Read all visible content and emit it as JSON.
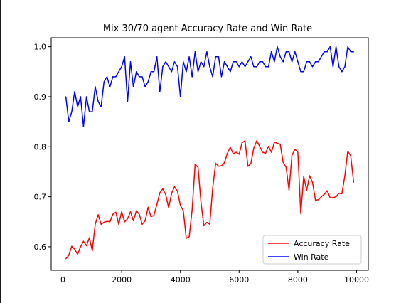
{
  "chart_data": {
    "type": "line",
    "title": "Mix 30/70 agent Accuracy Rate and Win Rate",
    "xlabel": "",
    "ylabel": "",
    "xlim": [
      -400,
      10400
    ],
    "ylim": [
      0.553,
      1.018
    ],
    "x_ticks": [
      0,
      2000,
      4000,
      6000,
      8000,
      10000
    ],
    "y_ticks": [
      0.6,
      0.7,
      0.8,
      0.9,
      1.0
    ],
    "x_tick_labels": [
      "0",
      "2000",
      "4000",
      "6000",
      "8000",
      "10000"
    ],
    "y_tick_labels": [
      "0.6",
      "0.7",
      "0.8",
      "0.9",
      "1.0"
    ],
    "grid": false,
    "legend_position": "lower-right",
    "x": [
      100,
      200,
      300,
      400,
      500,
      600,
      700,
      800,
      900,
      1000,
      1100,
      1200,
      1300,
      1400,
      1500,
      1600,
      1700,
      1800,
      1900,
      2000,
      2100,
      2200,
      2300,
      2400,
      2500,
      2600,
      2700,
      2800,
      2900,
      3000,
      3100,
      3200,
      3300,
      3400,
      3500,
      3600,
      3700,
      3800,
      3900,
      4000,
      4100,
      4200,
      4300,
      4400,
      4500,
      4600,
      4700,
      4800,
      4900,
      5000,
      5100,
      5200,
      5300,
      5400,
      5500,
      5600,
      5700,
      5800,
      5900,
      6000,
      6100,
      6200,
      6300,
      6400,
      6500,
      6600,
      6700,
      6800,
      6900,
      7000,
      7100,
      7200,
      7300,
      7400,
      7500,
      7600,
      7700,
      7800,
      7900,
      8000,
      8100,
      8200,
      8300,
      8400,
      8500,
      8600,
      8700,
      8800,
      8900,
      9000,
      9100,
      9200,
      9300,
      9400,
      9500,
      9600,
      9700,
      9800,
      9900
    ],
    "series": [
      {
        "name": "Accuracy Rate",
        "color": "#ff0000",
        "values": [
          0.576,
          0.583,
          0.601,
          0.595,
          0.585,
          0.6,
          0.611,
          0.602,
          0.618,
          0.592,
          0.645,
          0.664,
          0.645,
          0.649,
          0.651,
          0.65,
          0.665,
          0.669,
          0.645,
          0.67,
          0.65,
          0.656,
          0.67,
          0.652,
          0.672,
          0.665,
          0.645,
          0.652,
          0.679,
          0.66,
          0.663,
          0.685,
          0.708,
          0.716,
          0.704,
          0.678,
          0.707,
          0.72,
          0.711,
          0.683,
          0.672,
          0.617,
          0.62,
          0.674,
          0.765,
          0.759,
          0.69,
          0.642,
          0.649,
          0.645,
          0.717,
          0.767,
          0.761,
          0.762,
          0.768,
          0.787,
          0.799,
          0.786,
          0.789,
          0.785,
          0.808,
          0.812,
          0.761,
          0.766,
          0.797,
          0.812,
          0.801,
          0.789,
          0.787,
          0.801,
          0.789,
          0.809,
          0.807,
          0.805,
          0.769,
          0.759,
          0.713,
          0.783,
          0.795,
          0.789,
          0.666,
          0.741,
          0.713,
          0.742,
          0.729,
          0.693,
          0.694,
          0.7,
          0.705,
          0.712,
          0.698,
          0.698,
          0.7,
          0.707,
          0.706,
          0.742,
          0.791,
          0.782,
          0.729
        ]
      },
      {
        "name": "Win Rate",
        "color": "#0000ff",
        "values": [
          0.9,
          0.85,
          0.87,
          0.91,
          0.88,
          0.9,
          0.84,
          0.9,
          0.87,
          0.87,
          0.92,
          0.89,
          0.88,
          0.93,
          0.94,
          0.92,
          0.94,
          0.94,
          0.95,
          0.96,
          0.98,
          0.89,
          0.97,
          0.92,
          0.95,
          0.94,
          0.94,
          0.92,
          0.93,
          0.95,
          0.95,
          0.98,
          0.91,
          0.96,
          0.97,
          0.96,
          0.95,
          0.97,
          0.96,
          0.9,
          0.97,
          0.95,
          0.98,
          0.94,
          0.99,
          0.95,
          0.97,
          0.96,
          0.99,
          0.96,
          0.94,
          0.98,
          0.98,
          0.94,
          0.97,
          0.96,
          0.95,
          0.97,
          0.97,
          0.96,
          0.97,
          0.96,
          0.97,
          0.98,
          0.96,
          0.96,
          0.97,
          0.97,
          0.96,
          0.96,
          0.99,
          0.97,
          1.0,
          0.98,
          0.97,
          0.99,
          0.99,
          0.97,
          0.99,
          0.97,
          0.95,
          0.95,
          0.97,
          0.97,
          0.96,
          0.97,
          0.97,
          0.98,
          0.99,
          0.99,
          1.0,
          0.96,
          1.0,
          0.96,
          0.95,
          0.96,
          1.0,
          0.99,
          0.99
        ]
      }
    ]
  }
}
